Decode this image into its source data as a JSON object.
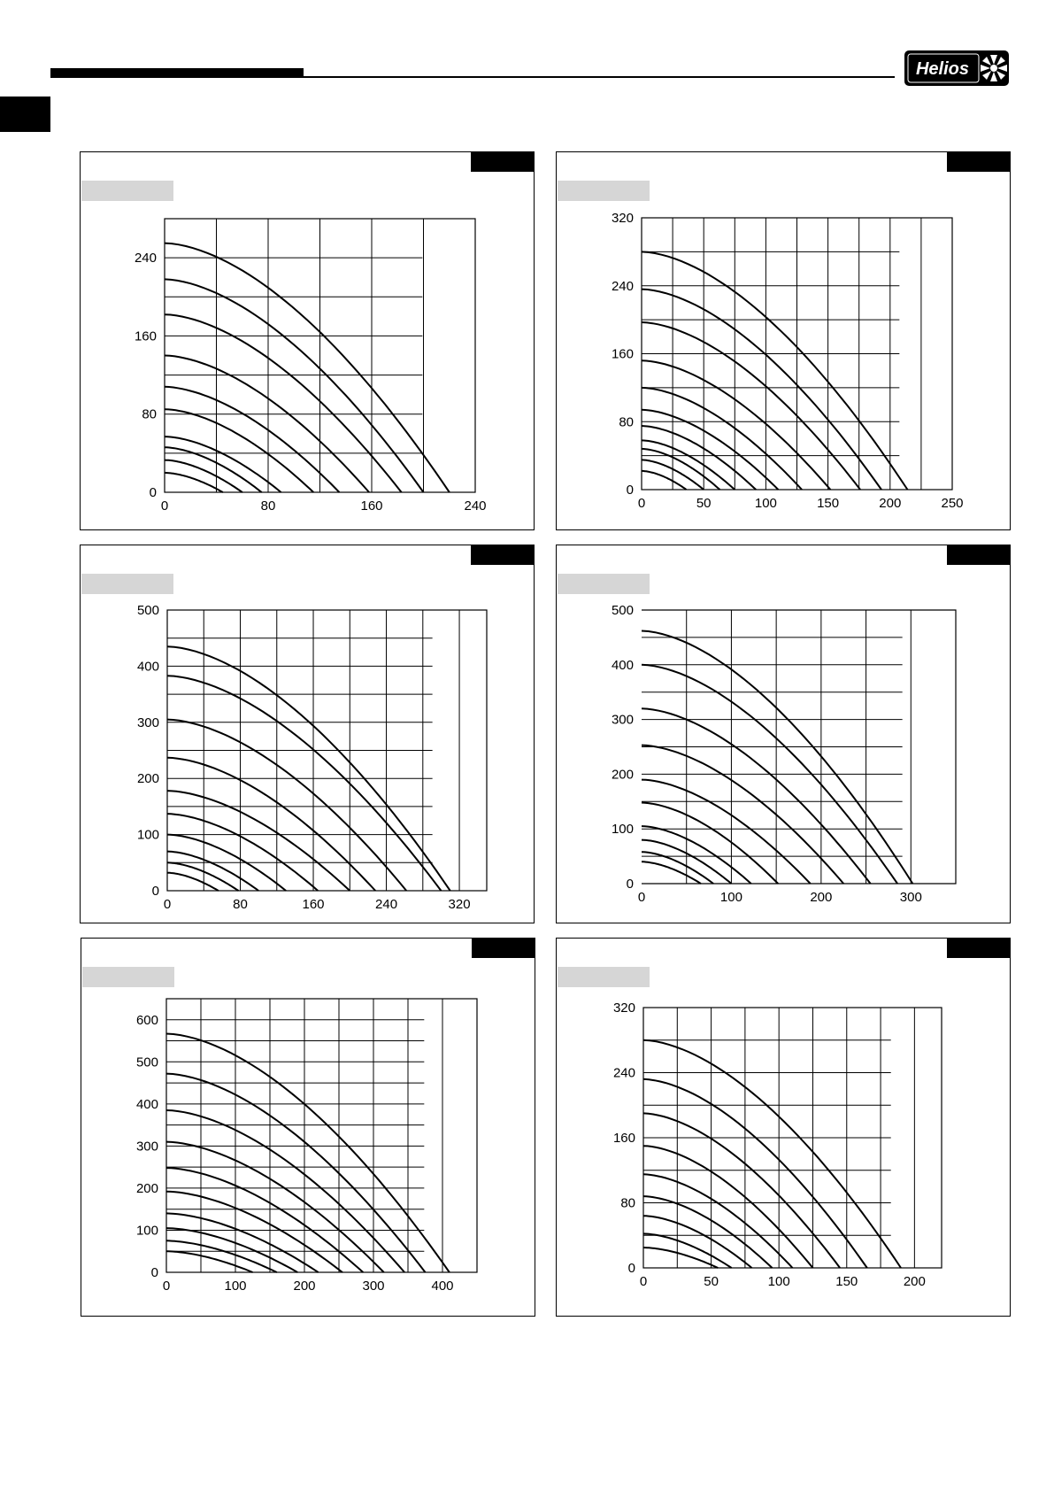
{
  "brand": {
    "logo_text": "Helios",
    "colors": {
      "ink": "#000000",
      "paper": "#ffffff",
      "label_box": "#d6d6d6"
    }
  },
  "chart_data": [
    {
      "type": "line",
      "xlim": [
        0,
        240
      ],
      "ylim": [
        0,
        280
      ],
      "xticks": [
        "0",
        "80",
        "160",
        "240"
      ],
      "yticks": [
        "0",
        "80",
        "160",
        "240"
      ],
      "grid": true,
      "series": [
        {
          "y0": 255,
          "x0": 220
        },
        {
          "y0": 218,
          "x0": 200
        },
        {
          "y0": 182,
          "x0": 183
        },
        {
          "y0": 140,
          "x0": 158
        },
        {
          "y0": 108,
          "x0": 135
        },
        {
          "y0": 85,
          "x0": 115
        },
        {
          "y0": 57,
          "x0": 90
        },
        {
          "y0": 46,
          "x0": 75
        },
        {
          "y0": 33,
          "x0": 60
        },
        {
          "y0": 20,
          "x0": 45
        }
      ]
    },
    {
      "type": "line",
      "xlim": [
        0,
        250
      ],
      "ylim": [
        0,
        320
      ],
      "xticks": [
        "0",
        "50",
        "100",
        "150",
        "200",
        "250"
      ],
      "yticks": [
        "0",
        "80",
        "160",
        "240",
        "320"
      ],
      "grid": true,
      "series": [
        {
          "y0": 280,
          "x0": 214
        },
        {
          "y0": 236,
          "x0": 193
        },
        {
          "y0": 197,
          "x0": 176
        },
        {
          "y0": 152,
          "x0": 152
        },
        {
          "y0": 120,
          "x0": 129
        },
        {
          "y0": 94,
          "x0": 110
        },
        {
          "y0": 75,
          "x0": 92
        },
        {
          "y0": 58,
          "x0": 75
        },
        {
          "y0": 48,
          "x0": 63
        },
        {
          "y0": 35,
          "x0": 50
        },
        {
          "y0": 22,
          "x0": 36
        }
      ]
    },
    {
      "type": "line",
      "xlim": [
        0,
        350
      ],
      "ylim": [
        0,
        500
      ],
      "xticks": [
        "0",
        "80",
        "160",
        "240",
        "320"
      ],
      "yticks": [
        "0",
        "100",
        "200",
        "300",
        "400",
        "500"
      ],
      "grid": true,
      "series": [
        {
          "y0": 435,
          "x0": 310
        },
        {
          "y0": 383,
          "x0": 300
        },
        {
          "y0": 305,
          "x0": 262
        },
        {
          "y0": 237,
          "x0": 228
        },
        {
          "y0": 178,
          "x0": 200
        },
        {
          "y0": 137,
          "x0": 165
        },
        {
          "y0": 100,
          "x0": 130
        },
        {
          "y0": 70,
          "x0": 100
        },
        {
          "y0": 50,
          "x0": 78
        },
        {
          "y0": 32,
          "x0": 56
        }
      ]
    },
    {
      "type": "line",
      "xlim": [
        0,
        350
      ],
      "ylim": [
        0,
        500
      ],
      "xticks": [
        "0",
        "100",
        "200",
        "300"
      ],
      "yticks": [
        "0",
        "100",
        "200",
        "300",
        "400",
        "500"
      ],
      "grid": true,
      "series": [
        {
          "y0": 462,
          "x0": 302
        },
        {
          "y0": 400,
          "x0": 285
        },
        {
          "y0": 320,
          "x0": 255
        },
        {
          "y0": 253,
          "x0": 225
        },
        {
          "y0": 190,
          "x0": 188
        },
        {
          "y0": 148,
          "x0": 152
        },
        {
          "y0": 105,
          "x0": 122
        },
        {
          "y0": 80,
          "x0": 100
        },
        {
          "y0": 58,
          "x0": 80
        },
        {
          "y0": 40,
          "x0": 66
        }
      ]
    },
    {
      "type": "line",
      "xlim": [
        0,
        450
      ],
      "ylim": [
        0,
        650
      ],
      "xticks": [
        "0",
        "100",
        "200",
        "300",
        "400"
      ],
      "yticks": [
        "0",
        "100",
        "200",
        "300",
        "400",
        "500",
        "600"
      ],
      "grid": true,
      "series": [
        {
          "y0": 567,
          "x0": 410
        },
        {
          "y0": 472,
          "x0": 375
        },
        {
          "y0": 385,
          "x0": 345
        },
        {
          "y0": 310,
          "x0": 315
        },
        {
          "y0": 248,
          "x0": 285
        },
        {
          "y0": 192,
          "x0": 255
        },
        {
          "y0": 140,
          "x0": 220
        },
        {
          "y0": 105,
          "x0": 190
        },
        {
          "y0": 75,
          "x0": 160
        },
        {
          "y0": 50,
          "x0": 125
        }
      ]
    },
    {
      "type": "line",
      "xlim": [
        0,
        220
      ],
      "ylim": [
        0,
        320
      ],
      "xticks": [
        "0",
        "50",
        "100",
        "150",
        "200"
      ],
      "yticks": [
        "0",
        "80",
        "160",
        "240",
        "320"
      ],
      "grid": true,
      "series": [
        {
          "y0": 280,
          "x0": 190
        },
        {
          "y0": 232,
          "x0": 165
        },
        {
          "y0": 190,
          "x0": 145
        },
        {
          "y0": 150,
          "x0": 125
        },
        {
          "y0": 115,
          "x0": 110
        },
        {
          "y0": 88,
          "x0": 95
        },
        {
          "y0": 64,
          "x0": 80
        },
        {
          "y0": 42,
          "x0": 65
        },
        {
          "y0": 25,
          "x0": 55
        }
      ]
    }
  ]
}
